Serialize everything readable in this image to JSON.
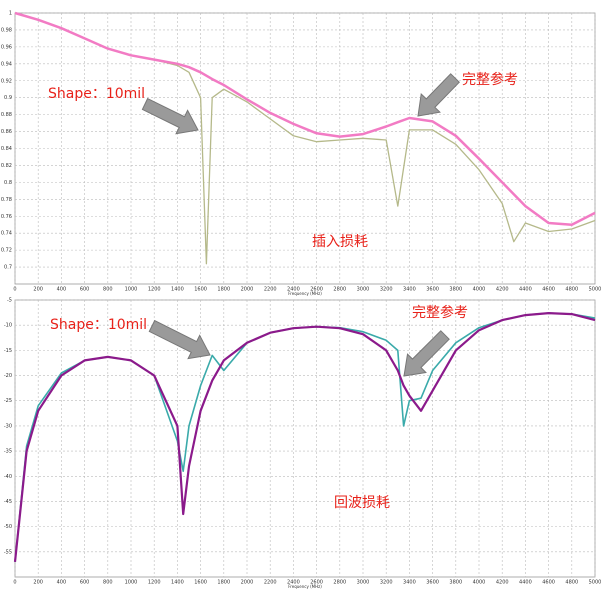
{
  "chart_data": [
    {
      "type": "line",
      "annotation": "插入损耗",
      "x_label": "Frequency (MHz)",
      "x": [
        0,
        200,
        400,
        600,
        800,
        1000,
        1200,
        1400,
        1500,
        1600,
        1650,
        1700,
        1800,
        2000,
        2200,
        2400,
        2600,
        2800,
        3000,
        3200,
        3300,
        3400,
        3600,
        3800,
        4000,
        4200,
        4300,
        4400,
        4600,
        4800,
        5000
      ],
      "series": [
        {
          "name": "完整参考",
          "color": "#f27bc4",
          "values": [
            1.0,
            0.992,
            0.982,
            0.97,
            0.958,
            0.95,
            0.945,
            0.94,
            0.936,
            0.93,
            0.926,
            0.922,
            0.915,
            0.898,
            0.882,
            0.869,
            0.858,
            0.854,
            0.857,
            0.866,
            0.871,
            0.876,
            0.872,
            0.855,
            0.828,
            0.8,
            0.786,
            0.772,
            0.752,
            0.75,
            0.764
          ]
        },
        {
          "name": "Shape：10mil",
          "color": "#b5b98a",
          "values": [
            1.0,
            0.992,
            0.982,
            0.97,
            0.958,
            0.95,
            0.945,
            0.938,
            0.93,
            0.9,
            0.704,
            0.9,
            0.91,
            0.895,
            0.875,
            0.855,
            0.848,
            0.85,
            0.852,
            0.85,
            0.772,
            0.862,
            0.862,
            0.845,
            0.815,
            0.775,
            0.73,
            0.752,
            0.742,
            0.745,
            0.755
          ]
        }
      ],
      "xlim": [
        0,
        5000
      ],
      "xticks": [
        0,
        200,
        400,
        600,
        800,
        1000,
        1200,
        1400,
        1600,
        1800,
        2000,
        2200,
        2400,
        2600,
        2800,
        3000,
        3200,
        3400,
        3600,
        3800,
        4000,
        4200,
        4400,
        4600,
        4800,
        5000
      ],
      "ylim": [
        0.68,
        1.0
      ],
      "yticks": [
        0.7,
        0.72,
        0.74,
        0.76,
        0.78,
        0.8,
        0.82,
        0.84,
        0.86,
        0.88,
        0.9,
        0.92,
        0.94,
        0.96,
        0.98,
        1
      ],
      "grid": true
    },
    {
      "type": "line",
      "annotation": "回波损耗",
      "x_label": "Frequency (MHz)",
      "x": [
        0,
        100,
        200,
        400,
        600,
        800,
        1000,
        1200,
        1400,
        1450,
        1500,
        1600,
        1700,
        1800,
        2000,
        2200,
        2400,
        2600,
        2800,
        3000,
        3200,
        3300,
        3350,
        3400,
        3500,
        3600,
        3800,
        4000,
        4200,
        4400,
        4600,
        4800,
        5000
      ],
      "series": [
        {
          "name": "完整参考",
          "color": "#8b1a8b",
          "values": [
            -57,
            -35,
            -27,
            -20,
            -17,
            -16.3,
            -17,
            -20,
            -30,
            -47.5,
            -38,
            -27,
            -21,
            -17,
            -13.5,
            -11.5,
            -10.6,
            -10.3,
            -10.6,
            -11.8,
            -15,
            -19,
            -22,
            -24,
            -27,
            -23,
            -15,
            -11,
            -9,
            -8,
            -7.6,
            -7.8,
            -9
          ]
        },
        {
          "name": "Shape：10mil",
          "color": "#3aaaaa",
          "values": [
            -57,
            -34,
            -26,
            -19.5,
            -17,
            -16.3,
            -17,
            -20,
            -33,
            -39,
            -30,
            -22,
            -16,
            -19,
            -13.5,
            -11.5,
            -10.6,
            -10.3,
            -10.5,
            -11.3,
            -13,
            -15,
            -30,
            -25,
            -24.5,
            -19,
            -13.5,
            -10.5,
            -9,
            -8,
            -7.6,
            -7.8,
            -8.6
          ]
        }
      ],
      "xlim": [
        0,
        5000
      ],
      "xticks": [
        0,
        200,
        400,
        600,
        800,
        1000,
        1200,
        1400,
        1600,
        1800,
        2000,
        2200,
        2400,
        2600,
        2800,
        3000,
        3200,
        3400,
        3600,
        3800,
        4000,
        4200,
        4400,
        4600,
        4800,
        5000
      ],
      "ylim": [
        -60,
        -5
      ],
      "yticks": [
        -55,
        -50,
        -45,
        -40,
        -35,
        -30,
        -25,
        -20,
        -15,
        -10,
        -5
      ],
      "grid": true
    }
  ]
}
